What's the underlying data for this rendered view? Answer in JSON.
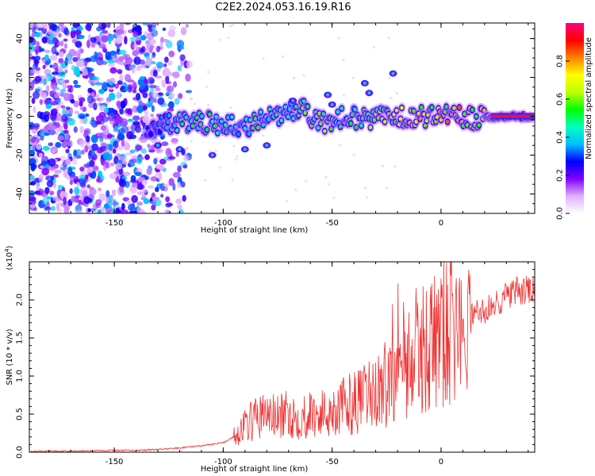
{
  "title": "C2E2.2024.053.16.19.R16",
  "chart_data": [
    {
      "type": "heatmap",
      "xlabel": "Height of straight line (km)",
      "ylabel": "Frequency (Hz)",
      "xlim": [
        -189,
        43
      ],
      "ylim": [
        -50,
        48
      ],
      "xticks": [
        -150,
        -100,
        -50,
        0
      ],
      "yticks": [
        -40,
        -20,
        0,
        20,
        40
      ],
      "colorbar": {
        "label": "Normalized spectral amplitude",
        "range": [
          0,
          1
        ],
        "ticks": [
          "0.0",
          "0.2",
          "0.4",
          "0.6",
          "0.8"
        ],
        "tick_values": [
          0,
          0.2,
          0.4,
          0.6,
          0.8
        ],
        "colors": [
          "#ffffff",
          "#e0b0ff",
          "#8000ff",
          "#0000ff",
          "#00c0ff",
          "#00ffc0",
          "#00ff00",
          "#c0ff00",
          "#ffff00",
          "#ff8000",
          "#ff0000",
          "#ff0080"
        ]
      },
      "noise_region_x": [
        -189,
        -122
      ],
      "ridge": [
        {
          "x": -135,
          "y": -7,
          "amp": 0.25
        },
        {
          "x": -128,
          "y": -5,
          "amp": 0.4
        },
        {
          "x": -120,
          "y": -4,
          "amp": 0.5
        },
        {
          "x": -110,
          "y": -3,
          "amp": 0.55
        },
        {
          "x": -100,
          "y": -4,
          "amp": 0.5
        },
        {
          "x": -92,
          "y": -6,
          "amp": 0.45
        },
        {
          "x": -85,
          "y": -3,
          "amp": 0.55
        },
        {
          "x": -75,
          "y": 0,
          "amp": 0.5
        },
        {
          "x": -65,
          "y": 5,
          "amp": 0.55
        },
        {
          "x": -55,
          "y": -4,
          "amp": 0.6
        },
        {
          "x": -45,
          "y": 0,
          "amp": 0.55
        },
        {
          "x": -35,
          "y": -2,
          "amp": 0.6
        },
        {
          "x": -25,
          "y": 1,
          "amp": 0.65
        },
        {
          "x": -15,
          "y": 0,
          "amp": 0.8
        },
        {
          "x": -5,
          "y": 0,
          "amp": 0.7
        },
        {
          "x": 5,
          "y": 0,
          "amp": 0.8
        },
        {
          "x": 15,
          "y": -1,
          "amp": 0.75
        },
        {
          "x": 25,
          "y": 0,
          "amp": 0.9
        },
        {
          "x": 35,
          "y": 0,
          "amp": 0.92
        },
        {
          "x": 42,
          "y": 0,
          "amp": 0.95
        }
      ]
    },
    {
      "type": "line",
      "xlabel": "Height of straight line (km)",
      "ylabel": "SNR (10 * v/v)",
      "y_multiplier": "(x10",
      "y_multiplier_exp": "4",
      "y_multiplier_close": ")",
      "xlim": [
        -189,
        43
      ],
      "ylim": [
        0,
        2.5
      ],
      "xticks": [
        -150,
        -100,
        -50,
        0
      ],
      "yticks": [
        0,
        0.5,
        1.0,
        1.5,
        2.0
      ],
      "ytick_labels": [
        "0.0",
        "0.5",
        "1.0",
        "1.5",
        "2.0"
      ],
      "line_color": "#ee3333",
      "series": [
        {
          "values": [
            [
              -189,
              0.0
            ],
            [
              -180,
              0.01
            ],
            [
              -170,
              0.01
            ],
            [
              -160,
              0.015
            ],
            [
              -150,
              0.02
            ],
            [
              -140,
              0.02
            ],
            [
              -130,
              0.03
            ],
            [
              -120,
              0.05
            ],
            [
              -110,
              0.08
            ],
            [
              -100,
              0.12
            ],
            [
              -95,
              0.2
            ],
            [
              -90,
              0.35
            ],
            [
              -85,
              0.45
            ],
            [
              -80,
              0.5
            ],
            [
              -75,
              0.45
            ],
            [
              -70,
              0.5
            ],
            [
              -65,
              0.45
            ],
            [
              -60,
              0.5
            ],
            [
              -55,
              0.5
            ],
            [
              -50,
              0.55
            ],
            [
              -45,
              0.6
            ],
            [
              -40,
              0.65
            ],
            [
              -35,
              0.7
            ],
            [
              -30,
              0.8
            ],
            [
              -25,
              0.9
            ],
            [
              -22,
              1.1
            ],
            [
              -20,
              1.5
            ],
            [
              -18,
              1.3
            ],
            [
              -15,
              1.2
            ],
            [
              -10,
              1.35
            ],
            [
              -5,
              1.4
            ],
            [
              0,
              1.55
            ],
            [
              5,
              1.6
            ],
            [
              10,
              1.7
            ],
            [
              12,
              0.9
            ],
            [
              14,
              1.8
            ],
            [
              20,
              1.85
            ],
            [
              25,
              1.95
            ],
            [
              30,
              2.05
            ],
            [
              35,
              2.1
            ],
            [
              40,
              2.12
            ],
            [
              43,
              2.15
            ]
          ]
        }
      ]
    }
  ]
}
